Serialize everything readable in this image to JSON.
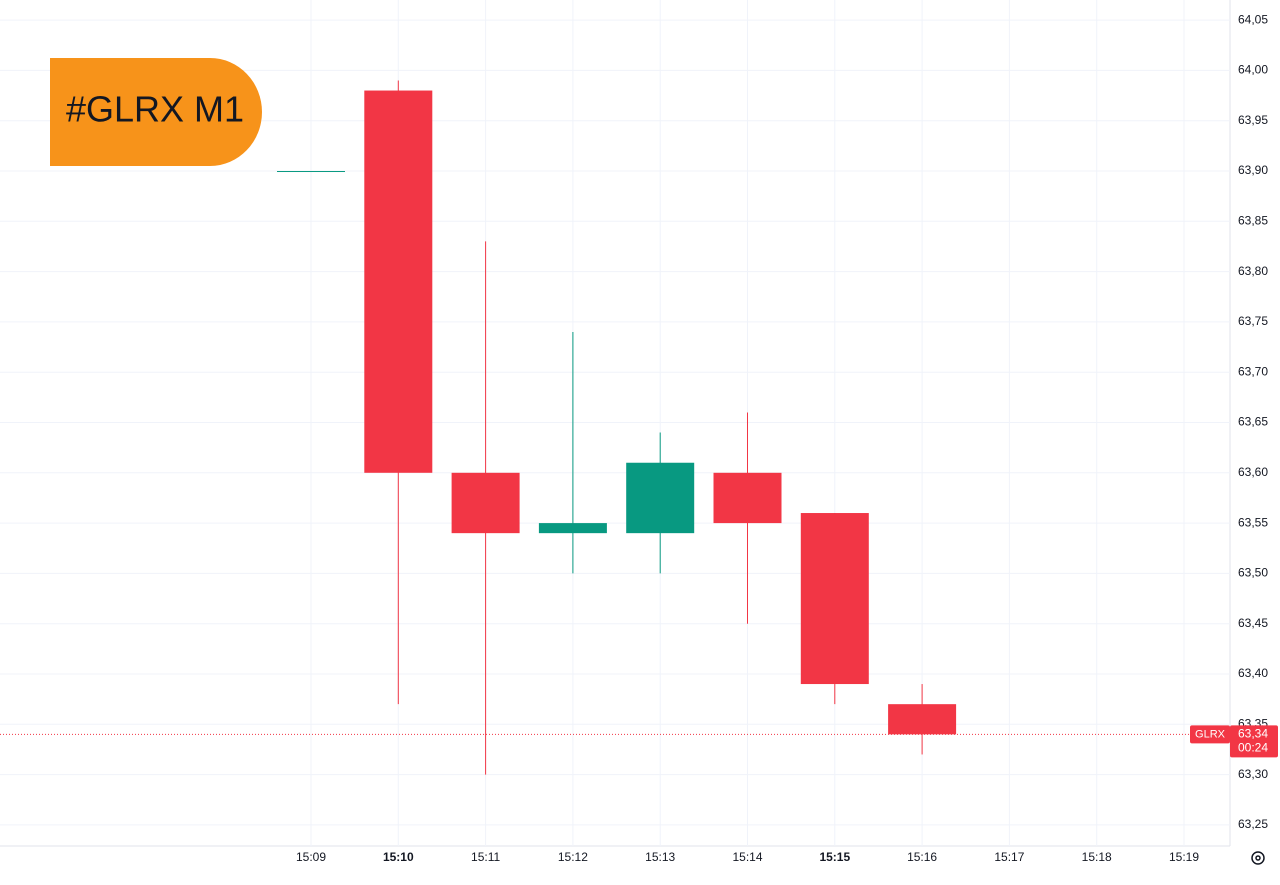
{
  "chart_data": {
    "type": "candlestick",
    "title": "#GLRX M1",
    "categories": [
      "15:09",
      "15:10",
      "15:11",
      "15:12",
      "15:13",
      "15:14",
      "15:15",
      "15:16",
      "15:17",
      "15:18",
      "15:19"
    ],
    "open": [
      63.9,
      63.98,
      63.6,
      63.54,
      63.54,
      63.6,
      63.56,
      63.37,
      null,
      null,
      null
    ],
    "high": [
      63.9,
      63.99,
      63.83,
      63.74,
      63.64,
      63.66,
      63.56,
      63.39,
      null,
      null,
      null
    ],
    "low": [
      63.9,
      63.37,
      63.3,
      63.5,
      63.5,
      63.45,
      63.37,
      63.32,
      null,
      null,
      null
    ],
    "close": [
      63.9,
      63.6,
      63.54,
      63.55,
      63.61,
      63.55,
      63.39,
      63.34,
      null,
      null,
      null
    ],
    "up_color": "#089981",
    "down_color": "#f23645",
    "ylim": [
      63.23,
      64.07
    ],
    "yticks": [
      {
        "value": 63.25,
        "label": "63,25"
      },
      {
        "value": 63.3,
        "label": "63,30"
      },
      {
        "value": 63.35,
        "label": "63,35"
      },
      {
        "value": 63.4,
        "label": "63,40"
      },
      {
        "value": 63.45,
        "label": "63,45"
      },
      {
        "value": 63.5,
        "label": "63,50"
      },
      {
        "value": 63.55,
        "label": "63,55"
      },
      {
        "value": 63.6,
        "label": "63,60"
      },
      {
        "value": 63.65,
        "label": "63,65"
      },
      {
        "value": 63.7,
        "label": "63,70"
      },
      {
        "value": 63.75,
        "label": "63,75"
      },
      {
        "value": 63.8,
        "label": "63,80"
      },
      {
        "value": 63.85,
        "label": "63,85"
      },
      {
        "value": 63.9,
        "label": "63,90"
      },
      {
        "value": 63.95,
        "label": "63,95"
      },
      {
        "value": 64.0,
        "label": "64,00"
      },
      {
        "value": 64.05,
        "label": "64,05"
      }
    ],
    "grid": true,
    "symbol": "GLRX",
    "last_price": {
      "value": 63.34,
      "label": "63,34"
    },
    "countdown": "00:24"
  }
}
